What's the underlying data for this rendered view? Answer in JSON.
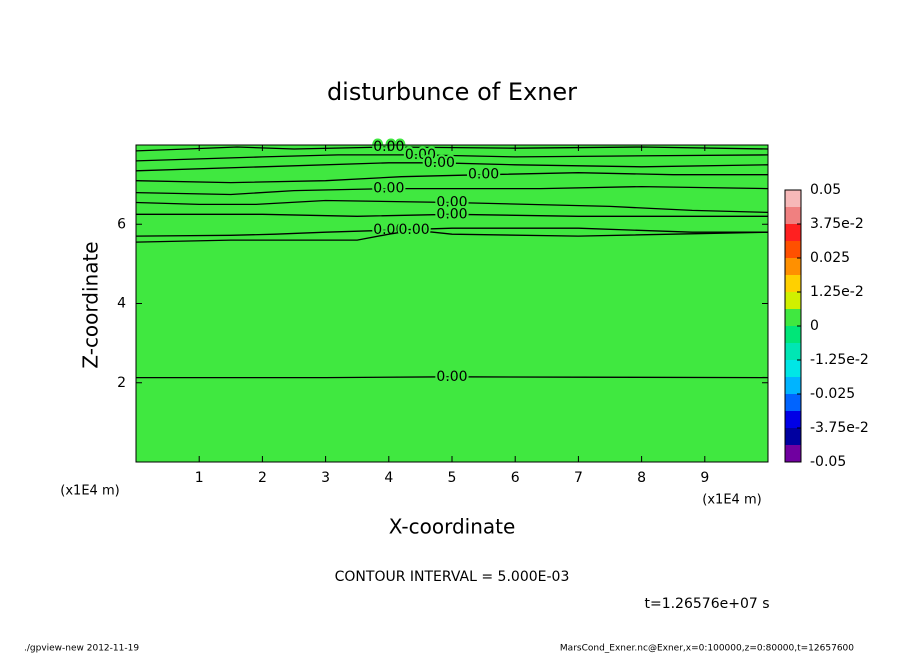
{
  "chart_data": {
    "type": "contour",
    "title": "disturbunce of Exner",
    "x_label": "X-coordinate",
    "y_label": "Z-coordinate",
    "x_unit": "(x1E4 m)",
    "y_unit": "(x1E4 m)",
    "xlim": [
      0,
      10
    ],
    "ylim": [
      0,
      8
    ],
    "xticks": [
      1,
      2,
      3,
      4,
      5,
      6,
      7,
      8,
      9
    ],
    "yticks": [
      2,
      4,
      6
    ],
    "field_color": "#40e840",
    "line_color": "#000000",
    "contours": [
      {
        "label": "0.00",
        "x": [
          0,
          3,
          5,
          7,
          10
        ],
        "y": [
          2.13,
          2.13,
          2.15,
          2.14,
          2.13
        ]
      },
      {
        "label": "0.00",
        "x": [
          0,
          0.8,
          1.6,
          2.5,
          4,
          6,
          8,
          10
        ],
        "y": [
          7.85,
          7.9,
          7.95,
          7.9,
          7.95,
          7.92,
          7.95,
          7.9
        ]
      },
      {
        "label": "0.00",
        "x": [
          0,
          1,
          2,
          3.2,
          4.5,
          6,
          7.5,
          10
        ],
        "y": [
          7.6,
          7.65,
          7.7,
          7.75,
          7.75,
          7.7,
          7.72,
          7.75
        ]
      },
      {
        "label": "0.00",
        "x": [
          0,
          2,
          4,
          4.8,
          6,
          8,
          10
        ],
        "y": [
          7.35,
          7.45,
          7.55,
          7.55,
          7.5,
          7.45,
          7.5
        ]
      },
      {
        "label": "0.00",
        "x": [
          0,
          1.5,
          3,
          4.2,
          5.5,
          7,
          8.5,
          10
        ],
        "y": [
          7.1,
          7.05,
          7.1,
          7.2,
          7.25,
          7.3,
          7.25,
          7.25
        ]
      },
      {
        "label": "0.00",
        "x": [
          0,
          1.5,
          2.5,
          4,
          6.4,
          8,
          10
        ],
        "y": [
          6.8,
          6.75,
          6.85,
          6.9,
          6.9,
          6.95,
          6.9
        ]
      },
      {
        "label": "0.00",
        "x": [
          0,
          1,
          1.9,
          3,
          5,
          7.5,
          8.8,
          10
        ],
        "y": [
          6.55,
          6.5,
          6.5,
          6.6,
          6.55,
          6.45,
          6.35,
          6.3
        ]
      },
      {
        "label": "0.00",
        "x": [
          0,
          2,
          3.5,
          5,
          7,
          10
        ],
        "y": [
          6.25,
          6.25,
          6.2,
          6.25,
          6.2,
          6.2
        ]
      },
      {
        "label": "0.00",
        "x": [
          0,
          1.5,
          2.2,
          3,
          4,
          5,
          7,
          8.8,
          10
        ],
        "y": [
          5.7,
          5.72,
          5.75,
          5.8,
          5.85,
          5.9,
          5.9,
          5.8,
          5.8
        ]
      },
      {
        "label": "0.00",
        "x": [
          0,
          1.5,
          3.5,
          4,
          4.4,
          5,
          7,
          10
        ],
        "y": [
          5.55,
          5.6,
          5.6,
          5.75,
          5.85,
          5.75,
          5.7,
          5.8
        ]
      }
    ],
    "colorbar": {
      "levels": [
        -0.05,
        -0.04375,
        -0.0375,
        -0.03125,
        -0.025,
        -0.01875,
        -0.0125,
        -0.00625,
        0,
        0.00625,
        0.0125,
        0.01875,
        0.025,
        0.03125,
        0.0375,
        0.04375,
        0.05
      ],
      "colors": [
        "#7000a0",
        "#0000a0",
        "#0000e6",
        "#0064ff",
        "#00b4ff",
        "#00e6e6",
        "#00e6b4",
        "#00e678",
        "#40e840",
        "#d0f000",
        "#ffd000",
        "#ff9000",
        "#ff5000",
        "#ff2020",
        "#f08080",
        "#f7b8b8"
      ],
      "ticks": [
        -0.05,
        {
          "value": -0.0375,
          "label": "-3.75e-2"
        },
        -0.025,
        {
          "value": -0.0125,
          "label": "-1.25e-2"
        },
        0,
        {
          "value": 0.0125,
          "label": "1.25e-2"
        },
        0.025,
        {
          "value": 0.0375,
          "label": "3.75e-2"
        },
        0.05
      ]
    },
    "annotations": [
      "CONTOUR INTERVAL = 5.000E-03",
      "t=1.26576e+07 s",
      "./gpview-new  2012-11-19",
      "MarsCond_Exner.nc@Exner,x=0:100000,z=0:80000,t=12657600"
    ]
  }
}
